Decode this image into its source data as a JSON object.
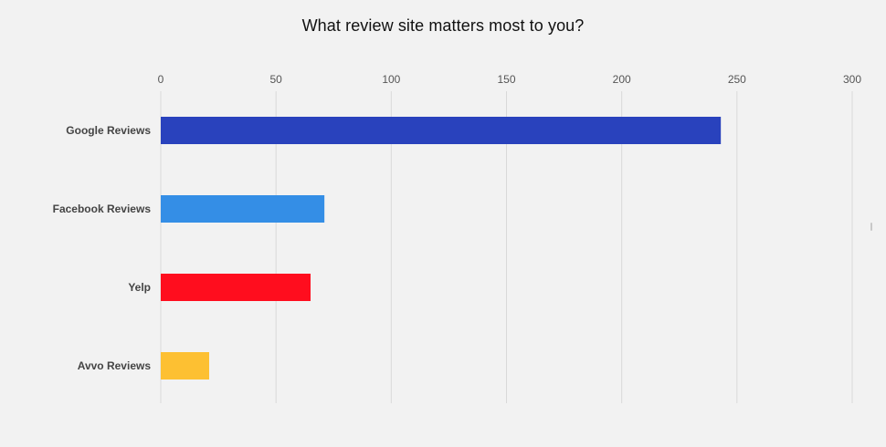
{
  "chart_data": {
    "type": "bar",
    "orientation": "horizontal",
    "title": "What review site matters most to you?",
    "xlabel": "",
    "ylabel": "",
    "categories": [
      "Google Reviews",
      "Facebook Reviews",
      "Yelp",
      "Avvo Reviews"
    ],
    "values": [
      243,
      71,
      65,
      21
    ],
    "colors": [
      "#2942bd",
      "#348ee6",
      "#ff0d1e",
      "#fdc032"
    ],
    "xlim": [
      0,
      300
    ],
    "ticks": [
      0,
      50,
      100,
      150,
      200,
      250,
      300
    ],
    "tick_labels": [
      "0",
      "50",
      "100",
      "150",
      "200",
      "250",
      "300"
    ],
    "axis_position": "top",
    "grid": true,
    "legend": "none"
  }
}
